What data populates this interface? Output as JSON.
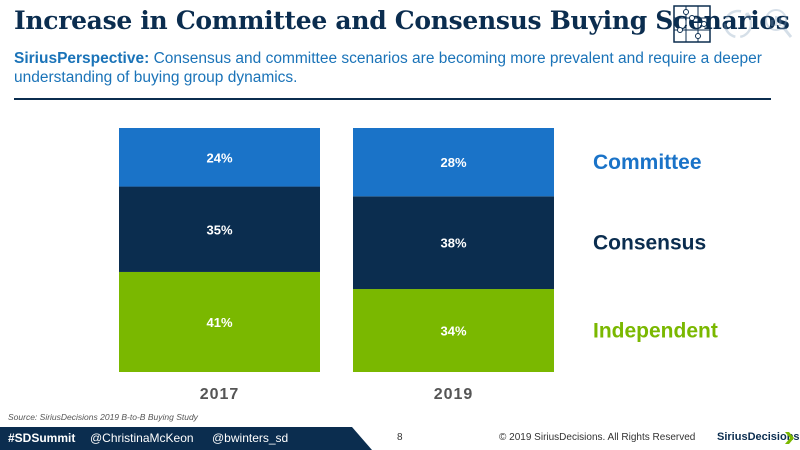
{
  "slide": {
    "title": "Increase in Committee and Consensus Buying Scenarios",
    "perspective_label": "SiriusPerspective:",
    "perspective_text": "Consensus and committee scenarios are becoming more prevalent and require a deeper understanding of buying group dynamics.",
    "source": "Source: SiriusDecisions 2019 B-to-B Buying Study",
    "header_icons": [
      "puzzle-icon",
      "cycle-icon",
      "magnifier-chart-icon"
    ]
  },
  "chart_data": {
    "type": "bar",
    "stacked": true,
    "percent": true,
    "categories": [
      "2017",
      "2019"
    ],
    "series": [
      {
        "name": "Independent",
        "values": [
          41,
          34
        ],
        "labels": [
          "41%",
          "34%"
        ],
        "color": "#7ab800",
        "label_color": "#7ab800"
      },
      {
        "name": "Consensus",
        "values": [
          35,
          38
        ],
        "labels": [
          "35%",
          "38%"
        ],
        "color": "#0b2d4f",
        "label_color": "#0b2d4f"
      },
      {
        "name": "Committee",
        "values": [
          24,
          28
        ],
        "labels": [
          "24%",
          "28%"
        ],
        "color": "#1a73c8",
        "label_color": "#1a73c8"
      }
    ],
    "ylim": [
      0,
      100
    ],
    "grid": false,
    "legend": "right"
  },
  "footer": {
    "hashtag": "#SDSummit",
    "handle1": "@ChristinaMcKeon",
    "handle2": "@bwinters_sd",
    "page": "8",
    "copyright": "© 2019 SiriusDecisions. All Rights Reserved",
    "brand": "SiriusDecisions"
  }
}
